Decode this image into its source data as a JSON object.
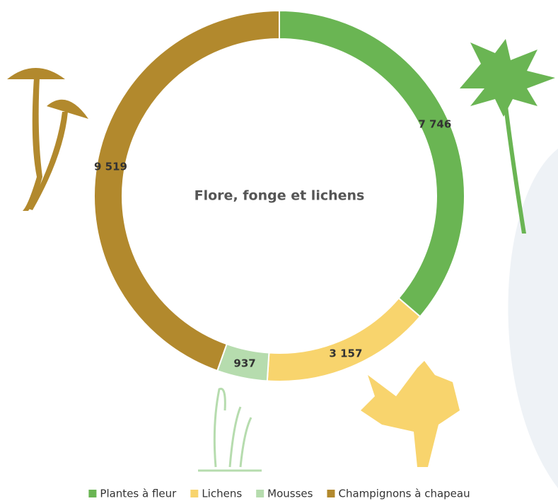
{
  "chart_data": {
    "type": "donut",
    "title": "Flore, fonge et lichens",
    "categories": [
      "Plantes à fleur",
      "Lichens",
      "Mousses",
      "Champignons à chapeau"
    ],
    "values": [
      7746,
      3157,
      937,
      9519
    ],
    "value_labels": [
      "7 746",
      "3 157",
      "937",
      "9 519"
    ],
    "colors": [
      "#6ab553",
      "#f8d46d",
      "#b6dcae",
      "#b2892d"
    ],
    "legend": "bottom"
  }
}
